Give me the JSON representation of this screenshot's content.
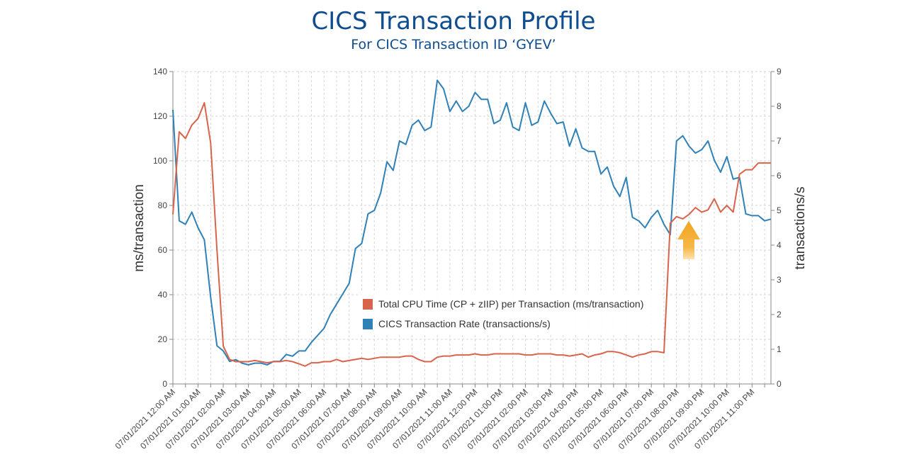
{
  "header": {
    "title": "CICS Transaction Profile",
    "subtitle": "For CICS Transaction ID ‘GYEV’"
  },
  "colors": {
    "cpu": "#d9644c",
    "rate": "#2f81b7",
    "arrow": "#f2a51e"
  },
  "chart_data": {
    "type": "line",
    "title": "CICS Transaction Profile",
    "ylabel": "ms/transaction",
    "y2label": "transactions/s",
    "ylim": [
      0,
      140
    ],
    "y2lim": [
      0,
      9
    ],
    "yticks": [
      "0",
      "20",
      "40",
      "60",
      "80",
      "100",
      "120",
      "140"
    ],
    "y2ticks": [
      "0",
      "1",
      "2",
      "3",
      "4",
      "5",
      "6",
      "7",
      "8",
      "9"
    ],
    "grid": true,
    "legend_position": "center",
    "x_tick_labels": [
      "07/01/2021 12:00 AM",
      "07/01/2021 01:00 AM",
      "07/01/2021 02:00 AM",
      "07/01/2021 03:00 AM",
      "07/01/2021 04:00 AM",
      "07/01/2021 05:00 AM",
      "07/01/2021 06:00 AM",
      "07/01/2021 07:00 AM",
      "07/01/2021 08:00 AM",
      "07/01/2021 09:00 AM",
      "07/01/2021 10:00 AM",
      "07/01/2021 11:00 AM",
      "07/01/2021 12:00 PM",
      "07/01/2021 01:00 PM",
      "07/01/2021 02:00 PM",
      "07/01/2021 03:00 PM",
      "07/01/2021 04:00 PM",
      "07/01/2021 05:00 PM",
      "07/01/2021 06:00 PM",
      "07/01/2021 07:00 PM",
      "07/01/2021 08:00 PM",
      "07/01/2021 09:00 PM",
      "07/01/2021 10:00 PM",
      "07/01/2021 11:00 PM"
    ],
    "x_hours": [
      0,
      0.25,
      0.5,
      0.75,
      1,
      1.25,
      1.5,
      1.75,
      2,
      2.25,
      2.5,
      2.75,
      3,
      3.25,
      3.5,
      3.75,
      4,
      4.25,
      4.5,
      4.75,
      5,
      5.25,
      5.5,
      5.75,
      6,
      6.25,
      6.5,
      6.75,
      7,
      7.25,
      7.5,
      7.75,
      8,
      8.25,
      8.5,
      8.75,
      9,
      9.25,
      9.5,
      9.75,
      10,
      10.25,
      10.5,
      10.75,
      11,
      11.25,
      11.5,
      11.75,
      12,
      12.25,
      12.5,
      12.75,
      13,
      13.25,
      13.5,
      13.75,
      14,
      14.25,
      14.5,
      14.75,
      15,
      15.25,
      15.5,
      15.75,
      16,
      16.25,
      16.5,
      16.75,
      17,
      17.25,
      17.5,
      17.75,
      18,
      18.25,
      18.5,
      18.75,
      19,
      19.25,
      19.5,
      19.75,
      20,
      20.25,
      20.5,
      20.75,
      21,
      21.25,
      21.5,
      21.75,
      22,
      22.25,
      22.5,
      22.75,
      23,
      23.25,
      23.5,
      23.75
    ],
    "series": [
      {
        "name": "Total CPU Time (CP + zIIP) per Transaction (ms/transaction)",
        "axis": "left",
        "values": [
          76,
          113,
          110,
          116,
          119,
          126,
          108,
          60,
          17,
          11,
          10,
          10,
          10,
          10.5,
          10,
          9.5,
          10,
          10,
          10.5,
          10,
          9,
          8,
          9.5,
          9.5,
          10,
          10,
          11,
          10,
          10.5,
          11,
          11.5,
          11,
          11.5,
          12,
          12,
          12,
          12,
          12.5,
          12.5,
          11,
          10,
          10,
          12,
          12.5,
          12.5,
          13,
          13,
          13,
          13.5,
          13,
          13,
          13.5,
          13.5,
          13.5,
          13.5,
          13.5,
          13,
          13,
          13.5,
          13.5,
          13.5,
          13,
          13,
          12.5,
          13,
          13.5,
          12,
          13,
          13.5,
          14.5,
          14.5,
          14,
          13,
          12,
          13,
          13.5,
          14.5,
          14.5,
          14,
          72,
          75,
          74,
          76,
          79,
          77,
          78,
          83,
          77,
          80,
          77,
          94,
          96,
          96,
          99,
          99,
          99
        ]
      },
      {
        "name": "CICS Transaction Rate (transactions/s)",
        "axis": "right",
        "values": [
          7.9,
          4.7,
          4.6,
          4.95,
          4.5,
          4.15,
          2.5,
          1.1,
          0.95,
          0.65,
          0.7,
          0.6,
          0.55,
          0.6,
          0.6,
          0.55,
          0.65,
          0.65,
          0.85,
          0.8,
          0.95,
          0.95,
          1.2,
          1.4,
          1.6,
          2.0,
          2.3,
          2.6,
          2.9,
          3.9,
          4.05,
          4.9,
          5.0,
          5.5,
          6.4,
          6.15,
          7.0,
          6.9,
          7.45,
          7.6,
          7.3,
          7.4,
          8.75,
          8.5,
          7.85,
          8.15,
          7.85,
          8.0,
          8.4,
          8.2,
          8.2,
          7.5,
          7.6,
          8.1,
          7.4,
          7.3,
          8.1,
          7.45,
          7.55,
          8.15,
          7.8,
          7.5,
          7.55,
          6.85,
          7.35,
          6.8,
          6.7,
          6.7,
          6.05,
          6.25,
          5.7,
          5.4,
          5.95,
          4.8,
          4.7,
          4.5,
          4.8,
          5.0,
          4.6,
          4.3,
          7.0,
          7.15,
          6.85,
          6.65,
          6.75,
          7.0,
          6.45,
          6.1,
          6.55,
          5.9,
          5.95,
          4.9,
          4.85,
          4.85,
          4.7,
          4.75
        ]
      }
    ]
  }
}
